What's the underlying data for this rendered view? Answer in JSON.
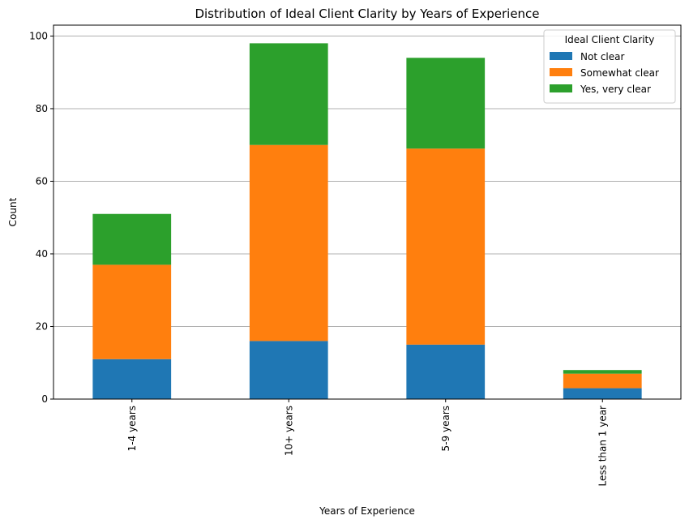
{
  "chart_data": {
    "type": "bar",
    "stacked": true,
    "title": "Distribution of Ideal Client Clarity by Years of Experience",
    "xlabel": "Years of Experience",
    "ylabel": "Count",
    "categories": [
      "1-4 years",
      "10+ years",
      "5-9 years",
      "Less than 1 year"
    ],
    "series": [
      {
        "name": "Not clear",
        "color": "#1f77b4",
        "values": [
          11,
          16,
          15,
          3
        ]
      },
      {
        "name": "Somewhat clear",
        "color": "#ff7f0e",
        "values": [
          26,
          54,
          54,
          4
        ]
      },
      {
        "name": "Yes, very clear",
        "color": "#2ca02c",
        "values": [
          14,
          28,
          25,
          1
        ]
      }
    ],
    "ylim": [
      0,
      103
    ],
    "yticks": [
      0,
      20,
      40,
      60,
      80,
      100
    ],
    "grid": "y",
    "legend": {
      "title": "Ideal Client Clarity",
      "position": "top-right"
    }
  }
}
